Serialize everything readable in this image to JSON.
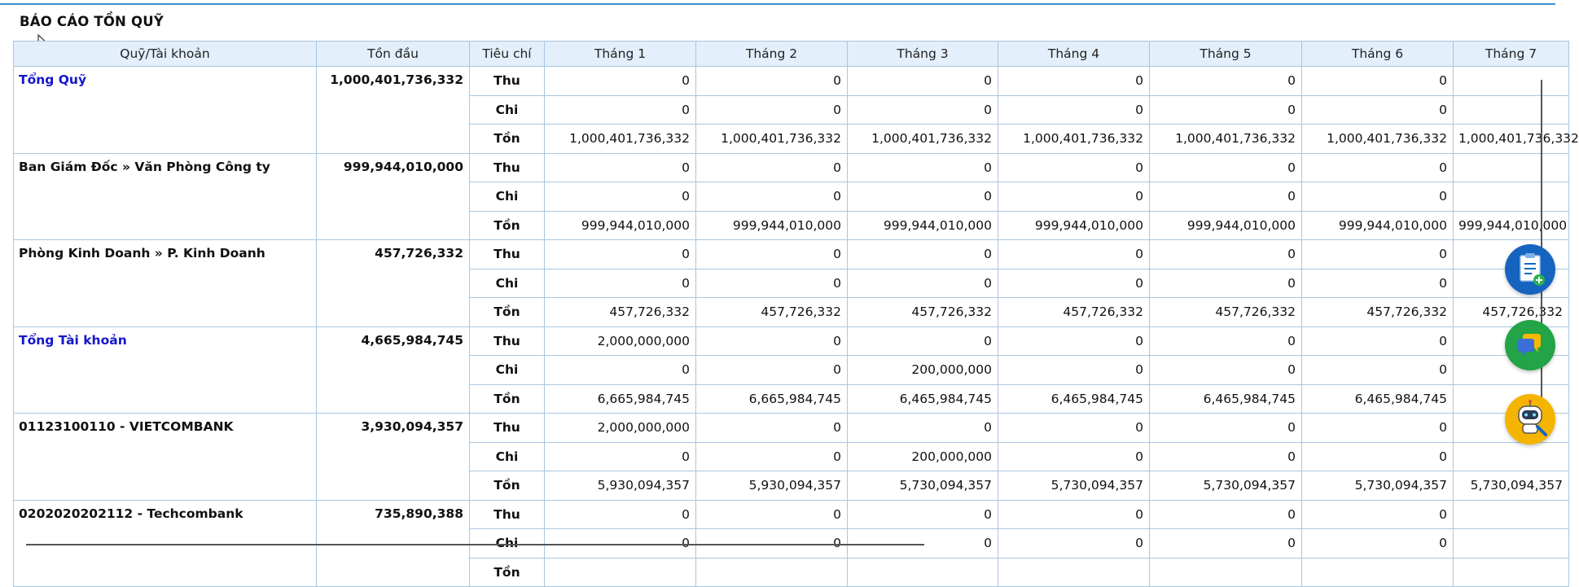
{
  "report": {
    "title": "BÁO CÁO TỒN QUỸ"
  },
  "columns": [
    "Quỹ/Tài khoản",
    "Tồn đầu",
    "Tiêu chí",
    "Tháng 1",
    "Tháng 2",
    "Tháng 3",
    "Tháng 4",
    "Tháng 5",
    "Tháng 6",
    "Tháng 7"
  ],
  "criteria": [
    "Thu",
    "Chi",
    "Tồn"
  ],
  "groups": [
    {
      "name": "Tổng Quỹ",
      "opening": "1,000,401,736,332",
      "rows": [
        [
          "0",
          "0",
          "0",
          "0",
          "0",
          "0",
          ""
        ],
        [
          "0",
          "0",
          "0",
          "0",
          "0",
          "0",
          ""
        ],
        [
          "1,000,401,736,332",
          "1,000,401,736,332",
          "1,000,401,736,332",
          "1,000,401,736,332",
          "1,000,401,736,332",
          "1,000,401,736,332",
          "1,000,401,736,332"
        ]
      ]
    },
    {
      "name": "Ban Giám Đốc » Văn Phòng Công ty",
      "opening": "999,944,010,000",
      "rows": [
        [
          "0",
          "0",
          "0",
          "0",
          "0",
          "0",
          ""
        ],
        [
          "0",
          "0",
          "0",
          "0",
          "0",
          "0",
          ""
        ],
        [
          "999,944,010,000",
          "999,944,010,000",
          "999,944,010,000",
          "999,944,010,000",
          "999,944,010,000",
          "999,944,010,000",
          "999,944,010,000"
        ]
      ]
    },
    {
      "name": "Phòng Kinh Doanh » P. Kinh Doanh",
      "opening": "457,726,332",
      "rows": [
        [
          "0",
          "0",
          "0",
          "0",
          "0",
          "0",
          ""
        ],
        [
          "0",
          "0",
          "0",
          "0",
          "0",
          "0",
          ""
        ],
        [
          "457,726,332",
          "457,726,332",
          "457,726,332",
          "457,726,332",
          "457,726,332",
          "457,726,332",
          "457,726,332"
        ]
      ]
    },
    {
      "name": "Tổng Tài khoản",
      "opening": "4,665,984,745",
      "rows": [
        [
          "2,000,000,000",
          "0",
          "0",
          "0",
          "0",
          "0",
          ""
        ],
        [
          "0",
          "0",
          "200,000,000",
          "0",
          "0",
          "0",
          ""
        ],
        [
          "6,665,984,745",
          "6,665,984,745",
          "6,465,984,745",
          "6,465,984,745",
          "6,465,984,745",
          "6,465,984,745",
          ""
        ]
      ]
    },
    {
      "name": "01123100110 - VIETCOMBANK",
      "opening": "3,930,094,357",
      "rows": [
        [
          "2,000,000,000",
          "0",
          "0",
          "0",
          "0",
          "0",
          ""
        ],
        [
          "0",
          "0",
          "200,000,000",
          "0",
          "0",
          "0",
          ""
        ],
        [
          "5,930,094,357",
          "5,930,094,357",
          "5,730,094,357",
          "5,730,094,357",
          "5,730,094,357",
          "5,730,094,357",
          "5,730,094,357"
        ]
      ]
    },
    {
      "name": "0202020202112 - Techcombank",
      "opening": "735,890,388",
      "rows": [
        [
          "0",
          "0",
          "0",
          "0",
          "0",
          "0",
          ""
        ],
        [
          "0",
          "0",
          "0",
          "0",
          "0",
          "0",
          ""
        ],
        [
          "",
          "",
          "",
          "",
          "",
          "",
          ""
        ]
      ]
    }
  ],
  "link_groups": [
    0,
    3
  ],
  "floating_buttons": [
    {
      "icon": "clipboard-add-icon",
      "color": "#1565c0"
    },
    {
      "icon": "chat-bubble-icon",
      "color": "#22a447"
    },
    {
      "icon": "robot-support-icon",
      "color": "#f5b400"
    }
  ]
}
